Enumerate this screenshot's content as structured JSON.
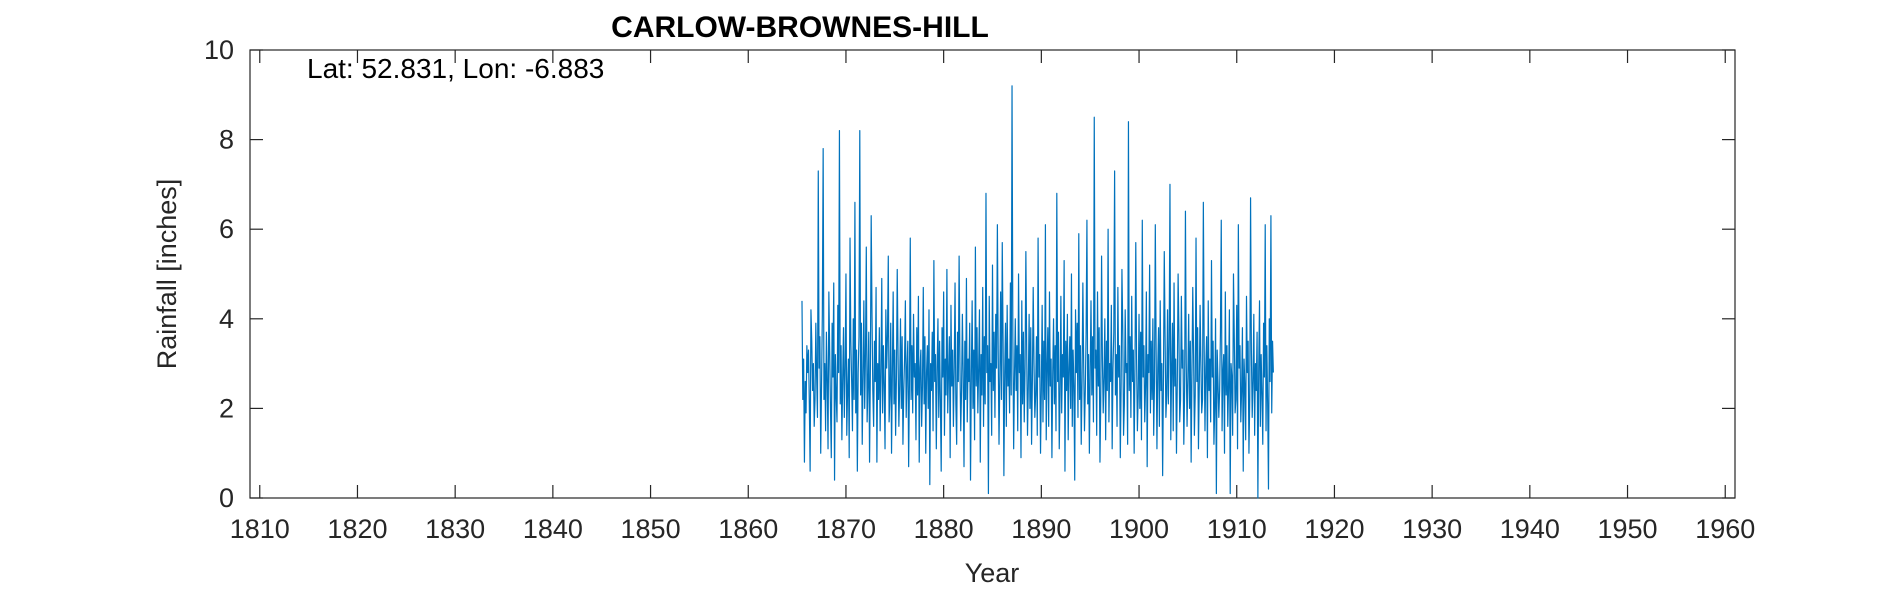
{
  "chart_data": {
    "type": "line",
    "title": "CARLOW-BROWNES-HILL",
    "xlabel": "Year",
    "ylabel": "Rainfall [inches]",
    "annotation": "Lat: 52.831, Lon: -6.883",
    "xlim": [
      1809,
      1961
    ],
    "ylim": [
      0,
      10
    ],
    "xticks": [
      1810,
      1820,
      1830,
      1840,
      1850,
      1860,
      1870,
      1880,
      1890,
      1900,
      1910,
      1920,
      1930,
      1940,
      1950,
      1960
    ],
    "yticks": [
      0,
      2,
      4,
      6,
      8,
      10
    ],
    "grid": false,
    "series_color": "#0072BD",
    "series": [
      {
        "x_start": 1865.5,
        "x_step": 0.08333,
        "values": [
          4.4,
          2.2,
          3.1,
          0.8,
          2.6,
          1.9,
          3.4,
          2.8,
          3.3,
          2.1,
          0.6,
          4.2,
          3.5,
          2.4,
          3.0,
          1.6,
          2.2,
          3.9,
          2.7,
          1.8,
          7.3,
          2.9,
          3.6,
          1.0,
          2.5,
          4.1,
          7.8,
          2.2,
          3.0,
          1.5,
          3.7,
          2.6,
          1.1,
          4.6,
          3.3,
          2.0,
          0.9,
          3.9,
          2.7,
          4.8,
          0.4,
          3.2,
          2.3,
          1.7,
          4.3,
          2.8,
          8.2,
          2.1,
          3.4,
          1.3,
          2.7,
          3.8,
          1.8,
          2.9,
          5.0,
          1.4,
          2.4,
          3.1,
          0.9,
          5.8,
          3.5,
          2.6,
          1.5,
          4.0,
          2.2,
          6.6,
          1.9,
          3.3,
          0.6,
          2.8,
          3.6,
          8.2,
          2.3,
          3.9,
          1.2,
          2.7,
          4.4,
          2.0,
          3.2,
          5.6,
          1.7,
          2.5,
          3.7,
          0.8,
          2.9,
          6.3,
          4.1,
          2.4,
          1.6,
          3.5,
          2.6,
          4.7,
          0.8,
          3.0,
          2.2,
          3.8,
          1.5,
          2.8,
          4.9,
          1.9,
          3.4,
          2.5,
          1.1,
          4.2,
          2.9,
          3.6,
          5.4,
          1.7,
          2.3,
          3.9,
          1.0,
          2.8,
          4.6,
          2.1,
          3.3,
          1.4,
          2.7,
          5.1,
          3.2,
          1.6,
          2.5,
          4.0,
          2.0,
          3.6,
          1.2,
          2.4,
          3.1,
          4.4,
          1.8,
          2.9,
          3.5,
          0.7,
          2.6,
          5.8,
          2.2,
          3.4,
          1.9,
          4.1,
          2.7,
          3.0,
          1.3,
          3.8,
          2.3,
          4.5,
          0.8,
          2.9,
          3.3,
          1.6,
          2.5,
          4.7,
          2.1,
          3.6,
          1.0,
          2.8,
          3.4,
          2.0,
          4.2,
          0.3,
          3.0,
          2.4,
          3.7,
          1.5,
          5.3,
          2.6,
          3.2,
          1.1,
          2.9,
          4.0,
          1.8,
          3.5,
          2.2,
          0.6,
          3.8,
          2.7,
          4.6,
          1.4,
          3.1,
          2.3,
          5.1,
          1.9,
          2.8,
          3.6,
          0.9,
          4.3,
          2.5,
          3.3,
          1.6,
          2.9,
          4.8,
          2.1,
          1.2,
          3.7,
          2.6,
          5.4,
          3.0,
          1.5,
          2.4,
          4.1,
          2.8,
          0.7,
          3.5,
          2.2,
          4.9,
          1.7,
          3.1,
          2.6,
          3.9,
          0.4,
          2.7,
          4.4,
          2.0,
          3.3,
          1.3,
          5.6,
          2.5,
          3.8,
          1.9,
          2.9,
          4.2,
          0.8,
          3.2,
          2.3,
          4.7,
          1.6,
          3.6,
          2.1,
          6.8,
          2.8,
          3.4,
          0.1,
          4.5,
          2.6,
          3.0,
          1.4,
          5.2,
          2.4,
          3.7,
          1.8,
          4.1,
          2.9,
          6.1,
          3.3,
          1.2,
          2.7,
          4.6,
          2.2,
          5.7,
          3.5,
          0.5,
          2.8,
          3.9,
          1.6,
          4.3,
          2.5,
          3.1,
          1.9,
          4.8,
          2.3,
          9.2,
          3.6,
          1.1,
          2.7,
          4.0,
          2.4,
          3.4,
          1.5,
          5.0,
          2.8,
          3.2,
          0.9,
          4.4,
          2.1,
          3.7,
          1.7,
          2.9,
          5.5,
          3.3,
          1.4,
          2.5,
          4.1,
          2.0,
          3.8,
          1.2,
          2.6,
          4.7,
          3.0,
          1.8,
          2.3,
          3.6,
          1.4,
          5.8,
          2.7,
          3.2,
          1.0,
          2.4,
          4.3,
          1.7,
          3.5,
          2.2,
          6.1,
          1.3,
          2.9,
          3.8,
          1.6,
          4.6,
          2.5,
          3.1,
          0.9,
          2.8,
          4.0,
          2.1,
          3.4,
          1.5,
          6.8,
          2.6,
          3.7,
          1.1,
          2.3,
          4.5,
          1.9,
          3.2,
          2.7,
          5.3,
          0.6,
          3.5,
          2.4,
          4.1,
          1.3,
          2.9,
          3.6,
          2.0,
          5.0,
          1.6,
          3.3,
          2.5,
          0.4,
          4.2,
          2.8,
          3.9,
          1.8,
          5.9,
          2.2,
          3.4,
          1.2,
          2.6,
          4.8,
          3.0,
          1.5,
          2.4,
          3.7,
          6.2,
          2.1,
          3.2,
          1.0,
          2.8,
          4.4,
          2.3,
          3.6,
          1.7,
          8.5,
          2.9,
          3.3,
          1.4,
          4.6,
          2.5,
          3.8,
          0.8,
          2.2,
          5.4,
          3.1,
          1.9,
          2.7,
          4.0,
          1.3,
          3.5,
          2.4,
          6.0,
          1.7,
          3.0,
          2.6,
          4.3,
          1.1,
          2.9,
          3.7,
          7.3,
          2.3,
          3.2,
          1.6,
          4.7,
          2.7,
          3.4,
          0.9,
          2.5,
          5.1,
          3.8,
          1.4,
          2.1,
          4.2,
          2.8,
          3.0,
          1.2,
          8.4,
          2.4,
          3.6,
          1.8,
          4.5,
          2.6,
          3.3,
          1.0,
          2.9,
          5.7,
          3.1,
          1.5,
          2.3,
          4.1,
          2.0,
          3.7,
          1.3,
          6.2,
          2.7,
          3.4,
          1.7,
          2.5,
          4.6,
          0.7,
          3.2,
          2.8,
          5.2,
          1.9,
          3.5,
          2.2,
          4.0,
          1.4,
          2.6,
          6.1,
          3.3,
          1.1,
          2.9,
          3.8,
          1.6,
          4.4,
          2.4,
          3.0,
          0.5,
          2.7,
          5.5,
          3.6,
          1.8,
          2.3,
          4.2,
          2.1,
          3.4,
          7.0,
          1.3,
          2.8,
          3.9,
          1.5,
          4.8,
          2.5,
          3.1,
          1.0,
          2.6,
          5.0,
          3.7,
          1.7,
          2.2,
          4.5,
          2.9,
          3.3,
          1.2,
          2.4,
          6.4,
          3.0,
          1.6,
          2.7,
          4.1,
          2.0,
          3.5,
          0.8,
          2.8,
          4.7,
          3.2,
          1.4,
          2.3,
          5.8,
          2.6,
          3.8,
          1.1,
          2.5,
          4.3,
          3.0,
          1.9,
          2.2,
          6.6,
          3.4,
          1.5,
          2.9,
          3.6,
          0.9,
          4.4,
          2.4,
          3.1,
          1.7,
          5.3,
          2.7,
          3.5,
          1.2,
          2.0,
          4.0,
          0.1,
          3.3,
          2.6,
          1.8,
          2.4,
          3.7,
          6.2,
          1.5,
          2.8,
          3.2,
          1.0,
          4.6,
          2.3,
          3.4,
          1.6,
          2.5,
          4.2,
          0.1,
          3.0,
          2.7,
          1.4,
          5.0,
          3.6,
          1.9,
          2.2,
          4.3,
          1.1,
          6.1,
          2.9,
          3.4,
          1.7,
          2.4,
          3.8,
          0.6,
          3.1,
          2.5,
          1.3,
          4.5,
          2.8,
          3.5,
          1.0,
          2.2,
          6.7,
          3.3,
          1.8,
          2.6,
          4.1,
          1.4,
          3.0,
          2.4,
          3.7,
          0.0,
          2.9,
          4.4,
          1.6,
          3.2,
          2.3,
          1.2,
          3.9,
          2.7,
          6.1,
          1.5,
          3.4,
          2.1,
          0.2,
          4.0,
          2.6,
          6.3,
          1.9,
          3.5,
          2.8
        ]
      }
    ]
  }
}
